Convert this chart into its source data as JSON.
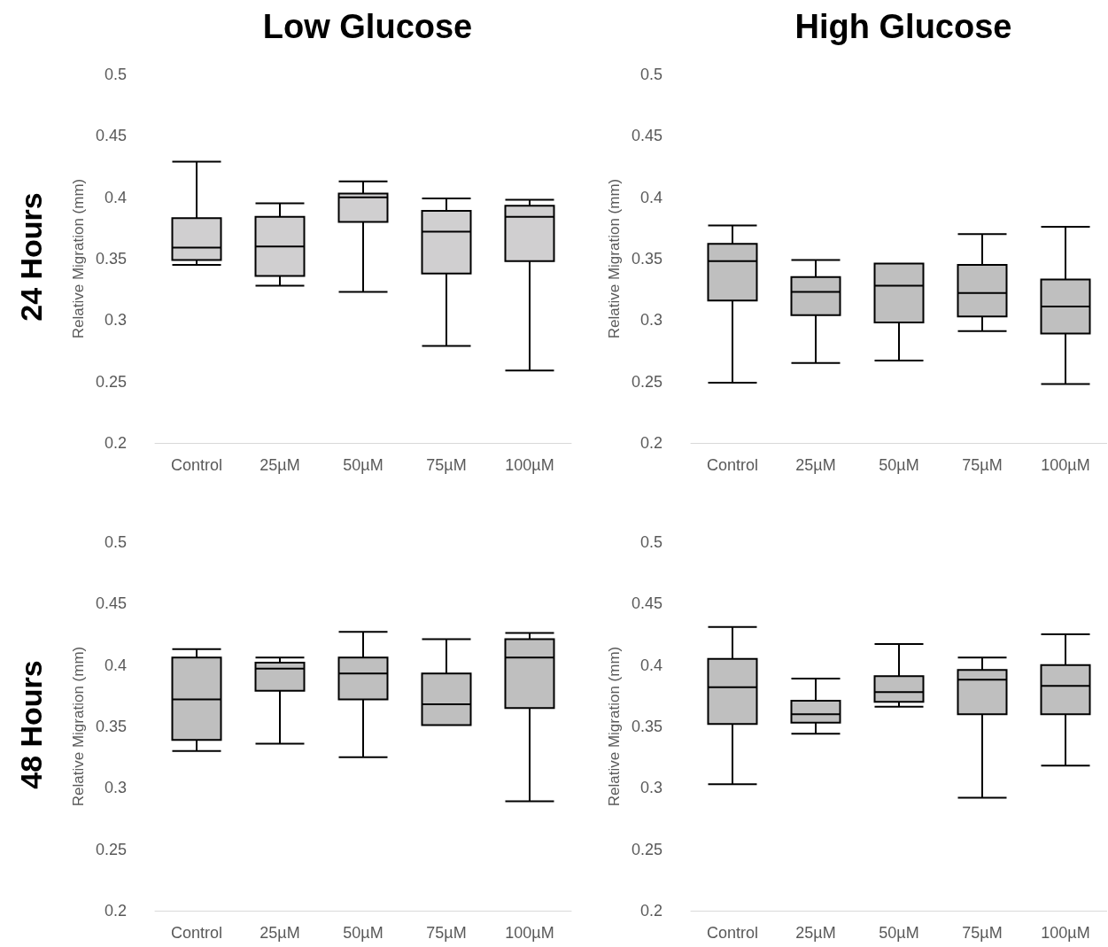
{
  "chart_data": [
    {
      "type": "box",
      "title": "Low Glucose",
      "annotations": [
        "24 Hours"
      ],
      "ylabel": "Relative Migration (mm)",
      "categories": [
        "Control",
        "25µM",
        "50µM",
        "75µM",
        "100µM"
      ],
      "color": "#d0cfd0",
      "ylim": [
        0.2,
        0.5
      ],
      "yticks": [
        0.2,
        0.25,
        0.3,
        0.35,
        0.4,
        0.45,
        0.5
      ],
      "boxes": [
        {
          "low": 0.345,
          "q1": 0.349,
          "median": 0.359,
          "q3": 0.383,
          "high": 0.429
        },
        {
          "low": 0.328,
          "q1": 0.336,
          "median": 0.36,
          "q3": 0.384,
          "high": 0.395
        },
        {
          "low": 0.323,
          "q1": 0.38,
          "median": 0.4,
          "q3": 0.403,
          "high": 0.413
        },
        {
          "low": 0.279,
          "q1": 0.338,
          "median": 0.372,
          "q3": 0.389,
          "high": 0.399
        },
        {
          "low": 0.259,
          "q1": 0.348,
          "median": 0.384,
          "q3": 0.393,
          "high": 0.398
        }
      ]
    },
    {
      "type": "box",
      "title": "High Glucose",
      "ylabel": "Relative Migration (mm)",
      "categories": [
        "Control",
        "25µM",
        "50µM",
        "75µM",
        "100µM"
      ],
      "color": "#bfbfbf",
      "ylim": [
        0.2,
        0.5
      ],
      "yticks": [
        0.2,
        0.25,
        0.3,
        0.35,
        0.4,
        0.45,
        0.5
      ],
      "boxes": [
        {
          "low": 0.249,
          "q1": 0.316,
          "median": 0.348,
          "q3": 0.362,
          "high": 0.377
        },
        {
          "low": 0.265,
          "q1": 0.304,
          "median": 0.323,
          "q3": 0.335,
          "high": 0.349
        },
        {
          "low": 0.267,
          "q1": 0.298,
          "median": 0.328,
          "q3": 0.346,
          "high": 0.346
        },
        {
          "low": 0.291,
          "q1": 0.303,
          "median": 0.322,
          "q3": 0.345,
          "high": 0.37
        },
        {
          "low": 0.248,
          "q1": 0.289,
          "median": 0.311,
          "q3": 0.333,
          "high": 0.376
        }
      ]
    },
    {
      "type": "box",
      "annotations": [
        "48 Hours"
      ],
      "ylabel": "Relative Migration (mm)",
      "categories": [
        "Control",
        "25µM",
        "50µM",
        "75µM",
        "100µM"
      ],
      "color": "#bfbfbf",
      "ylim": [
        0.2,
        0.5
      ],
      "yticks": [
        0.2,
        0.25,
        0.3,
        0.35,
        0.4,
        0.45,
        0.5
      ],
      "boxes": [
        {
          "low": 0.33,
          "q1": 0.339,
          "median": 0.372,
          "q3": 0.406,
          "high": 0.413
        },
        {
          "low": 0.336,
          "q1": 0.379,
          "median": 0.397,
          "q3": 0.402,
          "high": 0.406
        },
        {
          "low": 0.325,
          "q1": 0.372,
          "median": 0.393,
          "q3": 0.406,
          "high": 0.427
        },
        {
          "low": 0.351,
          "q1": 0.351,
          "median": 0.368,
          "q3": 0.393,
          "high": 0.421
        },
        {
          "low": 0.289,
          "q1": 0.365,
          "median": 0.406,
          "q3": 0.421,
          "high": 0.426
        }
      ]
    },
    {
      "type": "box",
      "ylabel": "Relative Migration (mm)",
      "categories": [
        "Control",
        "25µM",
        "50µM",
        "75µM",
        "100µM"
      ],
      "color": "#bfbfbf",
      "ylim": [
        0.2,
        0.5
      ],
      "yticks": [
        0.2,
        0.25,
        0.3,
        0.35,
        0.4,
        0.45,
        0.5
      ],
      "boxes": [
        {
          "low": 0.303,
          "q1": 0.352,
          "median": 0.382,
          "q3": 0.405,
          "high": 0.431
        },
        {
          "low": 0.344,
          "q1": 0.353,
          "median": 0.36,
          "q3": 0.371,
          "high": 0.389
        },
        {
          "low": 0.366,
          "q1": 0.37,
          "median": 0.378,
          "q3": 0.391,
          "high": 0.417
        },
        {
          "low": 0.292,
          "q1": 0.36,
          "median": 0.388,
          "q3": 0.396,
          "high": 0.406
        },
        {
          "low": 0.318,
          "q1": 0.36,
          "median": 0.383,
          "q3": 0.4,
          "high": 0.425
        }
      ]
    }
  ]
}
